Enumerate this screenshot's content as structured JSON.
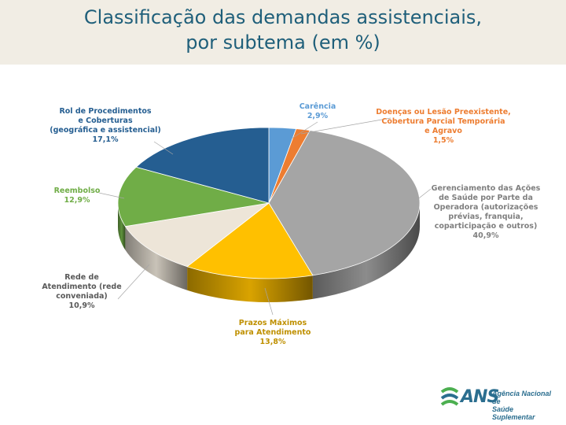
{
  "title_line1": "Classificação das demandas assistenciais,",
  "title_line2": "por subtema (em %)",
  "logo": {
    "word": "ANS",
    "sub1": "Agência Nacional de",
    "sub2": "Saúde Suplementar"
  },
  "chart_data": {
    "type": "pie",
    "title": "Classificação das demandas assistenciais, por subtema (em %)",
    "unit": "%",
    "slices": [
      {
        "name": "Carência",
        "label_lines": [
          "Carência",
          "2,9%"
        ],
        "value": 2.9,
        "color": "#5b9bd5",
        "label_color": "#5b9bd5"
      },
      {
        "name": "Doenças ou Lesão Preexistente, Cobertura Parcial Temporária e Agravo",
        "label_lines": [
          "Doenças ou Lesão Preexistente,",
          "Cobertura Parcial Temporária",
          "e Agravo",
          "1,5%"
        ],
        "value": 1.5,
        "color": "#ed7d31",
        "label_color": "#ed7d31"
      },
      {
        "name": "Gerenciamento das Ações de Saúde por Parte da Operadora (autorizações prévias, franquia, coparticipação e outros)",
        "label_lines": [
          "Gerenciamento das Ações",
          "de Saúde por Parte da",
          "Operadora (autorizações",
          "prévias, franquia,",
          "coparticipação e outros)",
          "40,9%"
        ],
        "value": 40.9,
        "color": "#a5a5a5",
        "label_color": "#7f7f7f"
      },
      {
        "name": "Prazos Máximos para Atendimento",
        "label_lines": [
          "Prazos Máximos",
          "para Atendimento",
          "13,8%"
        ],
        "value": 13.8,
        "color": "#ffc000",
        "label_color": "#bf9000"
      },
      {
        "name": "Rede de Atendimento (rede conveniada)",
        "label_lines": [
          "Rede de",
          "Atendimento (rede",
          "conveniada)",
          "10,9%"
        ],
        "value": 10.9,
        "color": "#ede5d8",
        "label_color": "#595959"
      },
      {
        "name": "Reembolso",
        "label_lines": [
          "Reembolso",
          "12,9%"
        ],
        "value": 12.9,
        "color": "#70ad47",
        "label_color": "#70ad47"
      },
      {
        "name": "Rol de Procedimentos e Coberturas (geográfica e assistencial)",
        "label_lines": [
          "Rol de Procedimentos",
          "e Coberturas",
          "(geográfica e assistencial)",
          "17,1%"
        ],
        "value": 17.1,
        "color": "#255e91",
        "label_color": "#255e91"
      }
    ]
  }
}
